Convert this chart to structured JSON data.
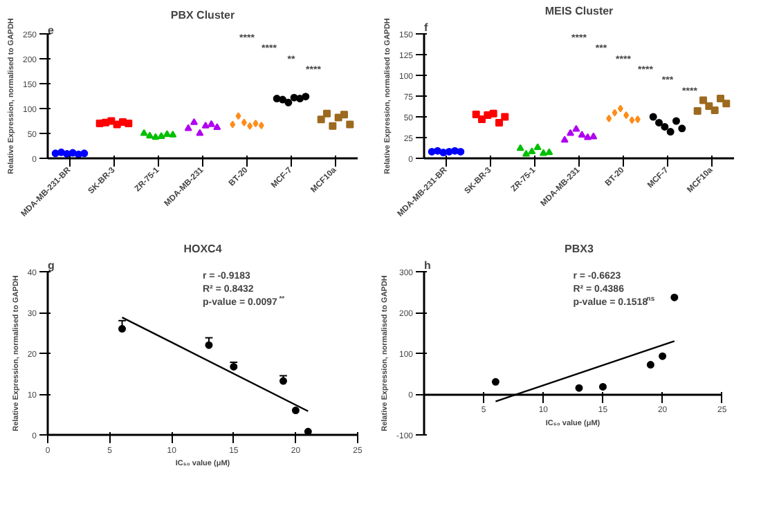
{
  "chart_data": [
    {
      "type": "scatter",
      "title": "PBX Cluster",
      "ylabel": "Relative Expression, normalised to GAPDH",
      "categories": [
        "MDA-MB-231-BR",
        "SK-BR-3",
        "ZR-75-1",
        "MDA-MB-231",
        "BT-20",
        "MCF-7",
        "MCF10a"
      ],
      "ylim": [
        0,
        250
      ],
      "yticks": [
        0,
        50,
        100,
        150,
        200,
        250
      ],
      "grid": false,
      "series": [
        {
          "color": "#0000ff",
          "marker": "circle",
          "x": [
            "MDA-MB-231-BR",
            "MDA-MB-231-BR",
            "MDA-MB-231-BR",
            "MDA-MB-231-BR",
            "MDA-MB-231-BR",
            "MDA-MB-231-BR"
          ],
          "values": [
            10,
            12,
            9,
            11,
            8,
            10
          ]
        },
        {
          "color": "#ff0000",
          "marker": "square",
          "x": [
            "SK-BR-3",
            "SK-BR-3",
            "SK-BR-3",
            "SK-BR-3",
            "SK-BR-3",
            "SK-BR-3"
          ],
          "values": [
            70,
            72,
            75,
            68,
            73,
            70
          ]
        },
        {
          "color": "#00c000",
          "marker": "triangle",
          "x": [
            "ZR-75-1",
            "ZR-75-1",
            "ZR-75-1",
            "ZR-75-1",
            "ZR-75-1",
            "ZR-75-1"
          ],
          "values": [
            50,
            45,
            42,
            44,
            48,
            47
          ]
        },
        {
          "color": "#b000f0",
          "marker": "triangle",
          "x": [
            "MDA-MB-231",
            "MDA-MB-231",
            "MDA-MB-231",
            "MDA-MB-231",
            "MDA-MB-231",
            "MDA-MB-231"
          ],
          "values": [
            60,
            72,
            50,
            65,
            68,
            62
          ]
        },
        {
          "color": "#ff8c1a",
          "marker": "diamond",
          "x": [
            "BT-20",
            "BT-20",
            "BT-20",
            "BT-20",
            "BT-20",
            "BT-20"
          ],
          "values": [
            68,
            85,
            72,
            65,
            70,
            66
          ]
        },
        {
          "color": "#000000",
          "marker": "circle",
          "x": [
            "MCF-7",
            "MCF-7",
            "MCF-7",
            "MCF-7",
            "MCF-7",
            "MCF-7"
          ],
          "values": [
            120,
            118,
            112,
            122,
            120,
            124
          ]
        },
        {
          "color": "#9c6a1e",
          "marker": "square",
          "x": [
            "MCF10a",
            "MCF10a",
            "MCF10a",
            "MCF10a",
            "MCF10a",
            "MCF10a"
          ],
          "values": [
            78,
            90,
            65,
            82,
            88,
            68
          ]
        }
      ],
      "annotations": [
        "e",
        "****",
        "****",
        "**",
        "****"
      ]
    },
    {
      "type": "scatter",
      "title": "MEIS Cluster",
      "ylabel": "Relative Expression, normalised to GAPDH",
      "categories": [
        "MDA-MB-231-BR",
        "SK-BR-3",
        "ZR-75-1",
        "MDA-MB-231",
        "BT-20",
        "MCF-7",
        "MCF10a"
      ],
      "ylim": [
        0,
        150
      ],
      "yticks": [
        0,
        25,
        50,
        75,
        100,
        125,
        150
      ],
      "grid": false,
      "series": [
        {
          "color": "#0000ff",
          "marker": "circle",
          "x": [
            "MDA-MB-231-BR",
            "MDA-MB-231-BR",
            "MDA-MB-231-BR",
            "MDA-MB-231-BR",
            "MDA-MB-231-BR",
            "MDA-MB-231-BR"
          ],
          "values": [
            8,
            9,
            7,
            8,
            9,
            8
          ]
        },
        {
          "color": "#ff0000",
          "marker": "square",
          "x": [
            "SK-BR-3",
            "SK-BR-3",
            "SK-BR-3",
            "SK-BR-3",
            "SK-BR-3",
            "SK-BR-3"
          ],
          "values": [
            53,
            47,
            52,
            54,
            43,
            50
          ]
        },
        {
          "color": "#00c000",
          "marker": "triangle",
          "x": [
            "ZR-75-1",
            "ZR-75-1",
            "ZR-75-1",
            "ZR-75-1",
            "ZR-75-1",
            "ZR-75-1"
          ],
          "values": [
            12,
            5,
            8,
            13,
            6,
            7
          ]
        },
        {
          "color": "#b000f0",
          "marker": "triangle",
          "x": [
            "MDA-MB-231",
            "MDA-MB-231",
            "MDA-MB-231",
            "MDA-MB-231",
            "MDA-MB-231",
            "MDA-MB-231"
          ],
          "values": [
            22,
            30,
            35,
            28,
            25,
            26
          ]
        },
        {
          "color": "#ff8c1a",
          "marker": "diamond",
          "x": [
            "BT-20",
            "BT-20",
            "BT-20",
            "BT-20",
            "BT-20",
            "BT-20"
          ],
          "values": [
            48,
            55,
            60,
            52,
            46,
            47
          ]
        },
        {
          "color": "#000000",
          "marker": "circle",
          "x": [
            "MCF-7",
            "MCF-7",
            "MCF-7",
            "MCF-7",
            "MCF-7",
            "MCF-7"
          ],
          "values": [
            50,
            43,
            38,
            32,
            45,
            36
          ]
        },
        {
          "color": "#9c6a1e",
          "marker": "square",
          "x": [
            "MCF10a",
            "MCF10a",
            "MCF10a",
            "MCF10a",
            "MCF10a",
            "MCF10a"
          ],
          "values": [
            57,
            70,
            63,
            58,
            72,
            66
          ]
        }
      ],
      "annotations": [
        "f",
        "****",
        "***",
        "****",
        "****",
        "***",
        "****"
      ]
    },
    {
      "type": "scatter",
      "title": "HOXC4",
      "xlabel": "IC₅₀ value (μM)",
      "ylabel": "Relative Expression, normalised to GAPDH",
      "xlim": [
        0,
        25
      ],
      "xticks": [
        0,
        5,
        10,
        15,
        20,
        25
      ],
      "ylim": [
        0,
        40
      ],
      "yticks": [
        0,
        10,
        20,
        30,
        40
      ],
      "grid": false,
      "series": [
        {
          "type": "scatter",
          "marker": "circle",
          "color": "#000000",
          "x": [
            6,
            13,
            15,
            19,
            20,
            21
          ],
          "values": [
            26,
            22,
            16.7,
            13.2,
            6,
            0.8
          ],
          "errors": [
            [
              26,
              28
            ],
            [
              22,
              23.8
            ],
            [
              16.7,
              17.8
            ],
            [
              13.2,
              14.5
            ],
            null,
            null
          ]
        },
        {
          "type": "line",
          "color": "#000000",
          "x": [
            6,
            21
          ],
          "values": [
            28.8,
            5.8
          ]
        }
      ],
      "annotations": [
        "g",
        "r = -0.9183",
        "R² = 0.8432",
        "p-value = 0.0097$^{**}$"
      ]
    },
    {
      "type": "scatter",
      "title": "PBX3",
      "xlabel": "IC₅₀ value (μM)",
      "ylabel": "Relative Expression, normalised to GAPDH",
      "xlim": [
        0,
        25
      ],
      "xticks": [
        5,
        10,
        15,
        20,
        25
      ],
      "ylim": [
        -100,
        300
      ],
      "yticks": [
        -100,
        0,
        100,
        200,
        300
      ],
      "grid": false,
      "series": [
        {
          "type": "scatter",
          "marker": "circle",
          "color": "#000000",
          "x": [
            6,
            13,
            15,
            19,
            20,
            21
          ],
          "values": [
            30,
            15,
            18,
            72,
            93,
            237
          ]
        },
        {
          "type": "line",
          "color": "#000000",
          "x": [
            6,
            21
          ],
          "values": [
            -18,
            130
          ]
        }
      ],
      "annotations": [
        "h",
        "r = -0.6623",
        "R² = 0.4386",
        "p-value = 0.1518$^{ns}$"
      ]
    }
  ]
}
